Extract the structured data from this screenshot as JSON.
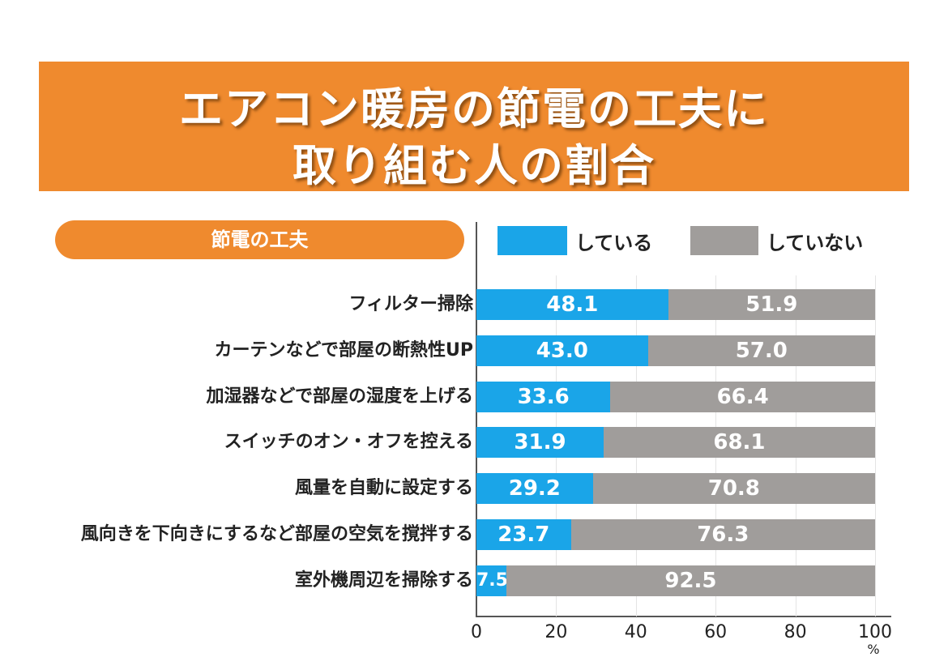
{
  "chart_data": {
    "type": "bar",
    "stacked": true,
    "orientation": "horizontal",
    "title": [
      "エアコン暖房の節電の工夫に",
      "取り組む人の割合"
    ],
    "category_header": "節電の工夫",
    "categories": [
      "フィルター掃除",
      "カーテンなどで部屋の断熱性UP",
      "加湿器などで部屋の湿度を上げる",
      "スイッチのオン・オフを控える",
      "風量を自動に設定する",
      "風向きを下向きにするなど部屋の空気を撹拌する",
      "室外機周辺を掃除する"
    ],
    "series": [
      {
        "name": "している",
        "color": "#1aa5e8",
        "values": [
          48.1,
          43.0,
          33.6,
          31.9,
          29.2,
          23.7,
          7.5
        ],
        "labels": [
          "48.1",
          "43.0",
          "33.6",
          "31.9",
          "29.2",
          "23.7",
          "7.5"
        ]
      },
      {
        "name": "していない",
        "color": "#a09d9b",
        "values": [
          51.9,
          57.0,
          66.4,
          68.1,
          70.8,
          76.3,
          92.5
        ],
        "labels": [
          "51.9",
          "57.0",
          "66.4",
          "68.1",
          "70.8",
          "76.3",
          "92.5"
        ]
      }
    ],
    "xlim": [
      0,
      100
    ],
    "xticks": [
      "0",
      "20",
      "40",
      "60",
      "80",
      "100"
    ],
    "xunit": "%",
    "grid": true,
    "legend": "top-right",
    "accent_color": "#ef8a2e"
  }
}
